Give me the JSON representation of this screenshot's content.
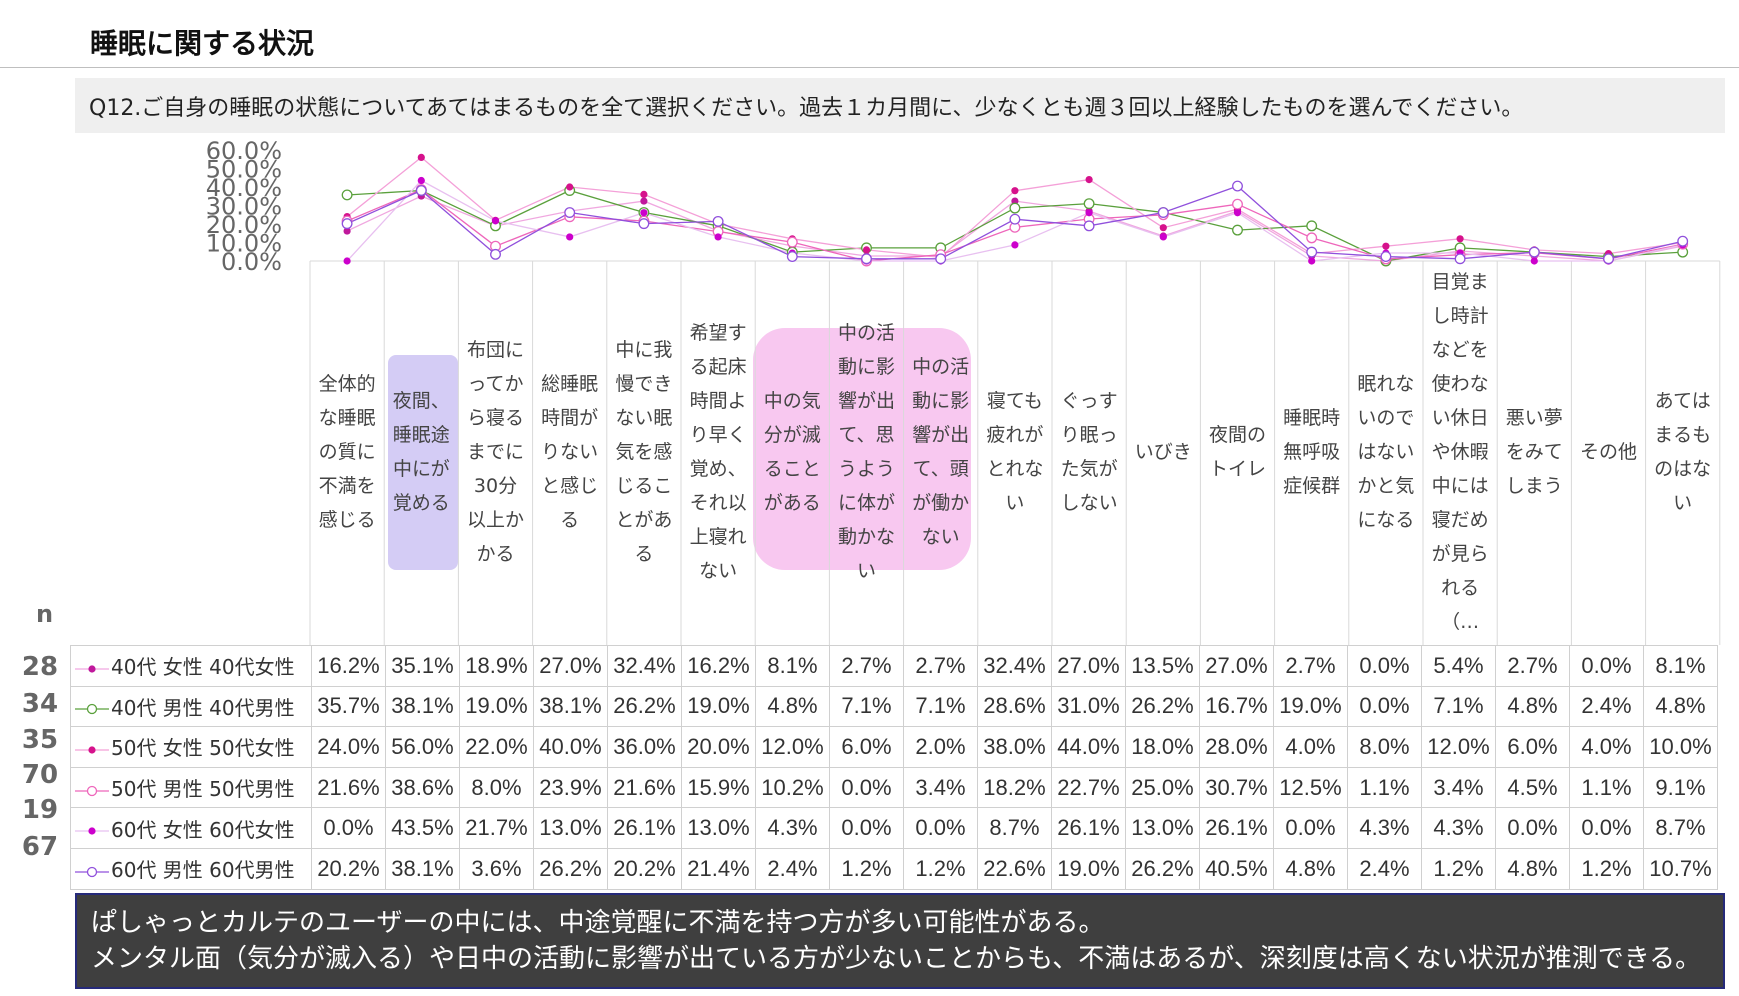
{
  "page": {
    "title": "睡眠に関する状況",
    "question": "Q12.ご自身の睡眠の状態についてあてはまるものを全て選択ください。過去１カ月間に、少なくとも週３回以上経験したものを選んでください。",
    "n_header": "n",
    "conclusion_line1": "ぱしゃっとカルテのユーザーの中には、中途覚醒に不満を持つ方が多い可能性がある。",
    "conclusion_line2": "メンタル面（気分が滅入る）や日中の活動に影響が出ている方が少ないことからも、不満はあるが、深刻度は高くない状況が推測できる。"
  },
  "chart_data": {
    "type": "line",
    "categories": [
      "全体的な睡眠の質に不満を感じる",
      "夜間、睡眠途中にが覚める",
      "布団にってから寝るまでに30分以上かかる",
      "総睡眠時間がりないと感じる",
      "中に我慢できない眠気を感じることがある",
      "希望する起床時間より早く覚め、それ以上寝れない",
      "中の気分が滅ることがある",
      "中の活動に影響が出て、思うように体が動かない",
      "中の活動に影響が出て、頭が働かない",
      "寝ても疲れがとれない",
      "ぐっすり眠った気がしない",
      "いびき",
      "夜間のトイレ",
      "睡眠時無呼吸症候群",
      "眠れないのではないかと気になる",
      "目覚まし時計などを使わない休日や休暇中には寝だめが見られる（…",
      "悪い夢をみてしまう",
      "その他",
      "あてはまるものはない"
    ],
    "ylim": [
      0,
      60
    ],
    "y_ticks": [
      "0.0%",
      "10.0%",
      "20.0%",
      "30.0%",
      "40.0%",
      "50.0%",
      "60.0%"
    ],
    "highlight": {
      "purple": "#d4ccf5",
      "pink": "#f8c8f0"
    },
    "series": [
      {
        "name": "40代 女性 40代女性",
        "n": "28",
        "color": "#c0189c",
        "marker": "filled",
        "line_color": "#f0a8e0",
        "values": [
          16.2,
          35.1,
          18.9,
          27.0,
          32.4,
          16.2,
          8.1,
          2.7,
          2.7,
          32.4,
          27.0,
          13.5,
          27.0,
          2.7,
          0.0,
          5.4,
          2.7,
          0.0,
          8.1
        ],
        "labels": [
          "16.2%",
          "35.1%",
          "18.9%",
          "27.0%",
          "32.4%",
          "16.2%",
          "8.1%",
          "2.7%",
          "2.7%",
          "32.4%",
          "27.0%",
          "13.5%",
          "27.0%",
          "2.7%",
          "0.0%",
          "5.4%",
          "2.7%",
          "0.0%",
          "8.1%"
        ]
      },
      {
        "name": "40代 男性 40代男性",
        "n": "34",
        "color": "#5aa03c",
        "marker": "open",
        "line_color": "#5aa03c",
        "values": [
          35.7,
          38.1,
          19.0,
          38.1,
          26.2,
          19.0,
          4.8,
          7.1,
          7.1,
          28.6,
          31.0,
          26.2,
          16.7,
          19.0,
          0.0,
          7.1,
          4.8,
          2.4,
          4.8
        ],
        "labels": [
          "35.7%",
          "38.1%",
          "19.0%",
          "38.1%",
          "26.2%",
          "19.0%",
          "4.8%",
          "7.1%",
          "7.1%",
          "28.6%",
          "31.0%",
          "26.2%",
          "16.7%",
          "19.0%",
          "0.0%",
          "7.1%",
          "4.8%",
          "2.4%",
          "4.8%"
        ]
      },
      {
        "name": "50代 女性 50代女性",
        "n": "35",
        "color": "#d6128c",
        "marker": "filled",
        "line_color": "#f4a0d8",
        "values": [
          24.0,
          56.0,
          22.0,
          40.0,
          36.0,
          20.0,
          12.0,
          6.0,
          2.0,
          38.0,
          44.0,
          18.0,
          28.0,
          4.0,
          8.0,
          12.0,
          6.0,
          4.0,
          10.0
        ],
        "labels": [
          "24.0%",
          "56.0%",
          "22.0%",
          "40.0%",
          "36.0%",
          "20.0%",
          "12.0%",
          "6.0%",
          "2.0%",
          "38.0%",
          "44.0%",
          "18.0%",
          "28.0%",
          "4.0%",
          "8.0%",
          "12.0%",
          "6.0%",
          "4.0%",
          "10.0%"
        ]
      },
      {
        "name": "50代 男性 50代男性",
        "n": "70",
        "color": "#ee66bb",
        "marker": "open",
        "line_color": "#ee66bb",
        "values": [
          21.6,
          38.6,
          8.0,
          23.9,
          21.6,
          15.9,
          10.2,
          0.0,
          3.4,
          18.2,
          22.7,
          25.0,
          30.7,
          12.5,
          1.1,
          3.4,
          4.5,
          1.1,
          9.1
        ],
        "labels": [
          "21.6%",
          "38.6%",
          "8.0%",
          "23.9%",
          "21.6%",
          "15.9%",
          "10.2%",
          "0.0%",
          "3.4%",
          "18.2%",
          "22.7%",
          "25.0%",
          "30.7%",
          "12.5%",
          "1.1%",
          "3.4%",
          "4.5%",
          "1.1%",
          "9.1%"
        ]
      },
      {
        "name": "60代 女性 60代女性",
        "n": "19",
        "color": "#cc00cc",
        "marker": "filled",
        "line_color": "#e8c0f0",
        "values": [
          0.0,
          43.5,
          21.7,
          13.0,
          26.1,
          13.0,
          4.3,
          0.0,
          0.0,
          8.7,
          26.1,
          13.0,
          26.1,
          0.0,
          4.3,
          4.3,
          0.0,
          0.0,
          8.7
        ],
        "labels": [
          "0.0%",
          "43.5%",
          "21.7%",
          "13.0%",
          "26.1%",
          "13.0%",
          "4.3%",
          "0.0%",
          "0.0%",
          "8.7%",
          "26.1%",
          "13.0%",
          "26.1%",
          "0.0%",
          "4.3%",
          "4.3%",
          "0.0%",
          "0.0%",
          "8.7%"
        ]
      },
      {
        "name": "60代 男性 60代男性",
        "n": "67",
        "color": "#9050dc",
        "marker": "open",
        "line_color": "#9050dc",
        "values": [
          20.2,
          38.1,
          3.6,
          26.2,
          20.2,
          21.4,
          2.4,
          1.2,
          1.2,
          22.6,
          19.0,
          26.2,
          40.5,
          4.8,
          2.4,
          1.2,
          4.8,
          1.2,
          10.7
        ],
        "labels": [
          "20.2%",
          "38.1%",
          "3.6%",
          "26.2%",
          "20.2%",
          "21.4%",
          "2.4%",
          "1.2%",
          "1.2%",
          "22.6%",
          "19.0%",
          "26.2%",
          "40.5%",
          "4.8%",
          "2.4%",
          "1.2%",
          "4.8%",
          "1.2%",
          "10.7%"
        ]
      }
    ]
  }
}
